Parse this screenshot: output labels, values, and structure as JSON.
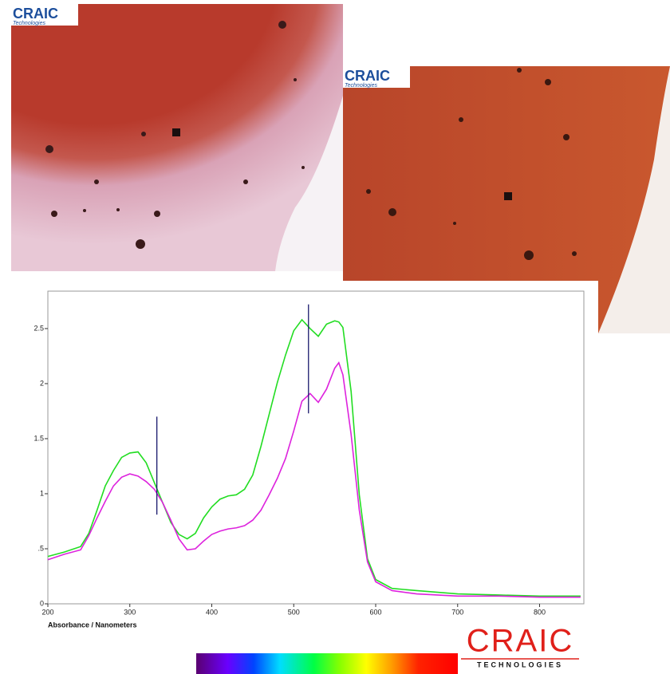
{
  "chart_data": {
    "type": "line",
    "x_label": "Absorbance / Nanometers",
    "x": [
      200,
      220,
      240,
      250,
      260,
      270,
      280,
      290,
      300,
      310,
      320,
      330,
      340,
      350,
      360,
      370,
      380,
      390,
      400,
      410,
      420,
      430,
      440,
      450,
      460,
      470,
      480,
      490,
      500,
      510,
      520,
      530,
      540,
      550,
      555,
      560,
      570,
      580,
      590,
      600,
      620,
      650,
      700,
      750,
      800,
      850
    ],
    "series": [
      {
        "color": "#22dd22",
        "values": [
          0.43,
          0.47,
          0.52,
          0.64,
          0.85,
          1.07,
          1.21,
          1.33,
          1.37,
          1.38,
          1.28,
          1.1,
          0.92,
          0.74,
          0.63,
          0.59,
          0.64,
          0.78,
          0.88,
          0.95,
          0.98,
          0.99,
          1.04,
          1.17,
          1.43,
          1.72,
          2.01,
          2.26,
          2.48,
          2.58,
          2.5,
          2.43,
          2.54,
          2.57,
          2.56,
          2.51,
          1.93,
          0.99,
          0.41,
          0.22,
          0.14,
          0.12,
          0.09,
          0.08,
          0.07,
          0.07
        ]
      },
      {
        "color": "#dd22dd",
        "values": [
          0.4,
          0.45,
          0.49,
          0.62,
          0.78,
          0.93,
          1.07,
          1.15,
          1.18,
          1.16,
          1.11,
          1.04,
          0.92,
          0.76,
          0.59,
          0.49,
          0.5,
          0.57,
          0.63,
          0.66,
          0.68,
          0.69,
          0.71,
          0.76,
          0.85,
          0.99,
          1.14,
          1.32,
          1.57,
          1.84,
          1.91,
          1.83,
          1.95,
          2.14,
          2.19,
          2.08,
          1.54,
          0.85,
          0.38,
          0.2,
          0.12,
          0.09,
          0.07,
          0.07,
          0.06,
          0.06
        ]
      }
    ],
    "markers": [
      {
        "x": 333,
        "ymin": 0.81,
        "ymax": 1.7,
        "color": "#1a1a6e"
      },
      {
        "x": 518,
        "ymin": 1.73,
        "ymax": 2.72,
        "color": "#1a1a6e"
      }
    ],
    "xlim": [
      200,
      854
    ],
    "xticks": [
      200,
      300,
      400,
      500,
      600,
      700,
      800
    ],
    "ylim": [
      0,
      2.84
    ],
    "yticks": [
      0,
      {
        "value": 0.5,
        "label": ".5"
      },
      1,
      1.5,
      2,
      2.5
    ]
  },
  "images": [
    {
      "logo": "CRAIC",
      "logo_sub": "Technologies"
    },
    {
      "logo": "CRAIC",
      "logo_sub": "Technologies"
    }
  ],
  "brand": {
    "name": "CRAIC",
    "sub": "TECHNOLOGIES"
  }
}
